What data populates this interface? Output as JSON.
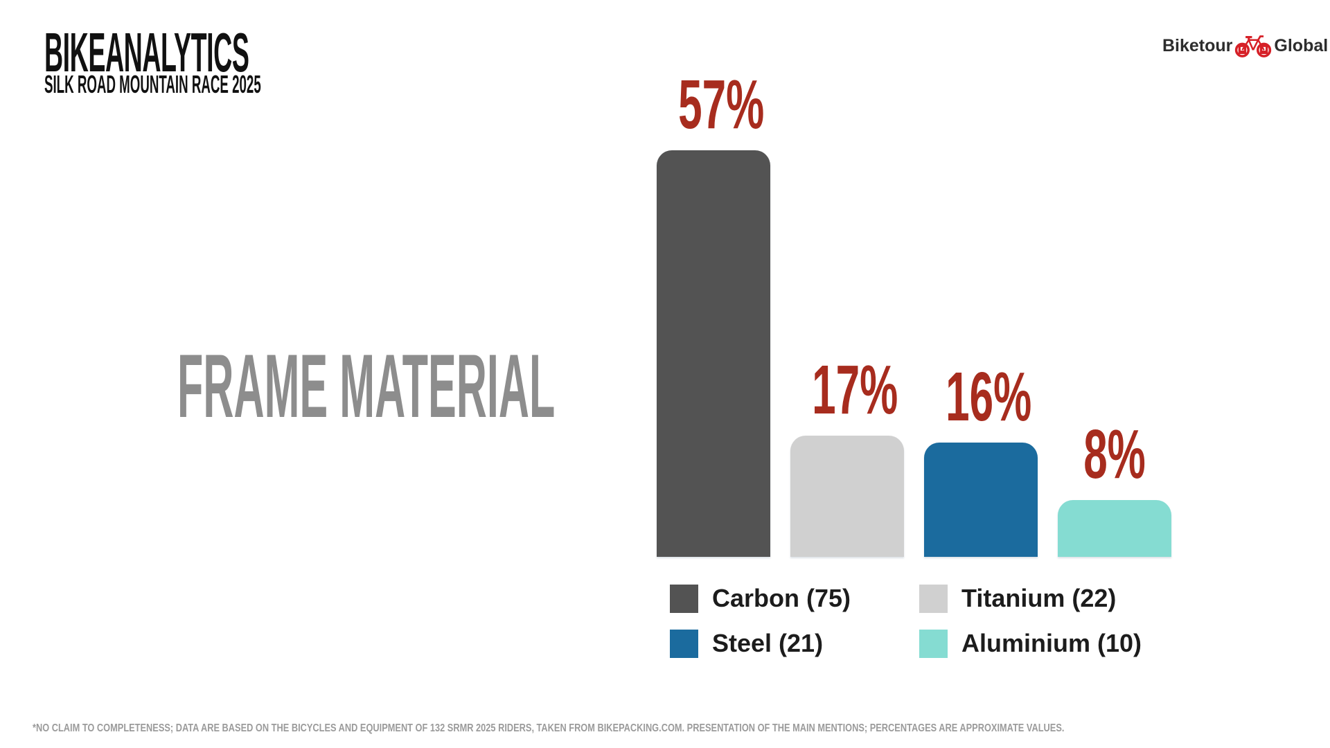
{
  "brand": {
    "title": "BIKEANALYTICS",
    "subtitle": "SILK ROAD MOUNTAIN RACE 2025"
  },
  "logo": {
    "word_left": "Biketour",
    "word_right": "Global",
    "icon": "touring-bicycle-icon",
    "icon_color": "#d62027",
    "text_color": "#2d2d2d"
  },
  "chart_title": "FRAME MATERIAL",
  "footnote": "*NO CLAIM TO COMPLETENESS; DATA ARE BASED ON THE BICYCLES AND EQUIPMENT OF 132 SRMR 2025 RIDERS, TAKEN FROM BIKEPACKING.COM. PRESENTATION OF THE MAIN MENTIONS; PERCENTAGES ARE APPROXIMATE VALUES.",
  "colors": {
    "background": "#ffffff",
    "title_black": "#111111",
    "chart_title_gray": "#8d8d8d",
    "value_label_red": "#a72c1e",
    "footnote_gray": "#9b9b9b",
    "carbon": "#535353",
    "titanium": "#d0d0d0",
    "steel": "#1b6b9e",
    "aluminium": "#85dcd2"
  },
  "chart_data": {
    "type": "bar",
    "title": "FRAME MATERIAL",
    "categories": [
      "Carbon",
      "Titanium",
      "Steel",
      "Aluminium"
    ],
    "values_percent": [
      57,
      17,
      16,
      8
    ],
    "counts": [
      75,
      22,
      21,
      10
    ],
    "total_riders": 132,
    "bar_colors": [
      "#535353",
      "#d0d0d0",
      "#1b6b9e",
      "#85dcd2"
    ],
    "value_labels": [
      "57%",
      "17%",
      "16%",
      "8%"
    ],
    "value_label_color": "#a72c1e",
    "ylim": [
      0,
      60
    ],
    "grid": false,
    "xlabel": "",
    "ylabel": "",
    "legend_position": "bottom",
    "legend": [
      {
        "label": "Carbon (75)",
        "color": "#535353"
      },
      {
        "label": "Titanium (22)",
        "color": "#d0d0d0"
      },
      {
        "label": "Steel (21)",
        "color": "#1b6b9e"
      },
      {
        "label": "Aluminium (10)",
        "color": "#85dcd2"
      }
    ]
  }
}
